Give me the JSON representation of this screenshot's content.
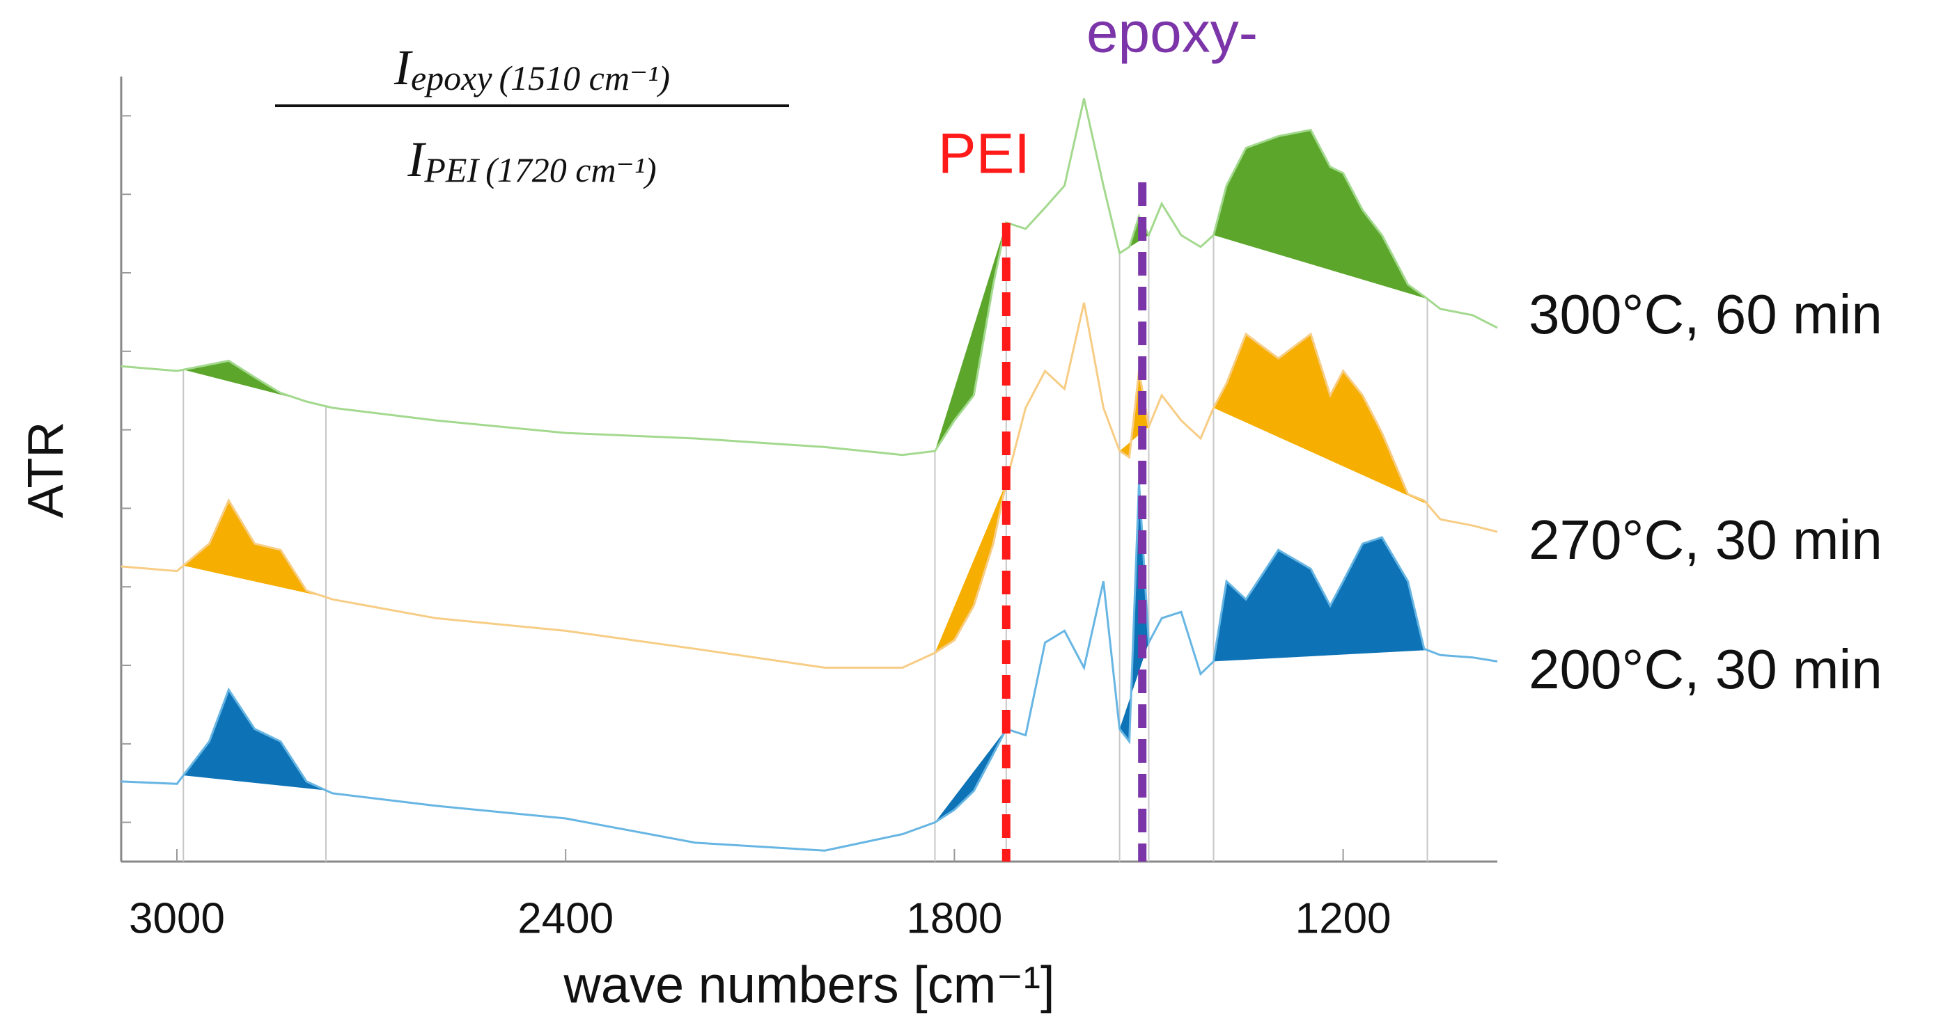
{
  "chart_data": {
    "type": "line",
    "xlabel": "wave numbers [cm⁻¹]",
    "ylabel": "ATR",
    "xlim": [
      3086,
      962
    ],
    "xticks": [
      3000,
      2400,
      1800,
      1200
    ],
    "ylim": [
      0,
      10
    ],
    "yticks": [
      0.5,
      1.5,
      2.5,
      3.5,
      4.5,
      5.5,
      6.5,
      7.5,
      8.5,
      9.5
    ],
    "formula": {
      "numerator": {
        "symbol": "I",
        "subscript": "epoxy",
        "argument": "(1510 cm⁻¹)"
      },
      "denominator": {
        "symbol": "I",
        "subscript": "PEI",
        "argument": "(1720 cm⁻¹)"
      }
    },
    "markers": [
      {
        "label": "PEI",
        "x": 1720,
        "color": "#ff1a1a"
      },
      {
        "label": "epoxy-",
        "x": 1510,
        "color": "#7b35a8"
      }
    ],
    "shaded_ranges": [
      [
        2990,
        2770
      ],
      [
        1830,
        1720
      ],
      [
        1545,
        1500
      ],
      [
        1400,
        1070
      ]
    ],
    "x": [
      3086,
      3000,
      2950,
      2920,
      2880,
      2840,
      2800,
      2760,
      2600,
      2400,
      2200,
      2000,
      1880,
      1830,
      1800,
      1770,
      1740,
      1720,
      1690,
      1660,
      1630,
      1600,
      1570,
      1545,
      1530,
      1515,
      1500,
      1480,
      1450,
      1420,
      1400,
      1380,
      1350,
      1300,
      1250,
      1220,
      1200,
      1170,
      1140,
      1100,
      1075,
      1050,
      1000,
      962
    ],
    "series": [
      {
        "name": "300°C, 60 min",
        "color": "#a3d98e",
        "fill_color": "#5ba62b",
        "values": [
          6.31,
          6.25,
          6.33,
          6.38,
          6.17,
          5.97,
          5.86,
          5.78,
          5.62,
          5.46,
          5.39,
          5.28,
          5.18,
          5.23,
          5.62,
          5.94,
          7.35,
          8.14,
          8.06,
          8.33,
          8.61,
          9.72,
          8.61,
          7.75,
          7.83,
          8.22,
          7.98,
          8.38,
          7.98,
          7.83,
          7.98,
          8.61,
          9.09,
          9.24,
          9.32,
          8.85,
          8.77,
          8.3,
          7.98,
          7.35,
          7.2,
          7.04,
          6.96,
          6.8
        ]
      },
      {
        "name": "270°C, 30 min",
        "color": "#f7cd85",
        "fill_color": "#f6ae00",
        "values": [
          3.76,
          3.7,
          4.05,
          4.6,
          4.05,
          3.97,
          3.45,
          3.34,
          3.1,
          2.94,
          2.71,
          2.47,
          2.47,
          2.66,
          2.82,
          3.26,
          4.05,
          4.83,
          5.78,
          6.25,
          6.02,
          7.12,
          5.78,
          5.23,
          5.15,
          6.25,
          5.54,
          5.94,
          5.62,
          5.39,
          5.78,
          6.09,
          6.72,
          6.41,
          6.72,
          5.94,
          6.25,
          5.94,
          5.46,
          4.68,
          4.6,
          4.36,
          4.28,
          4.2
        ]
      },
      {
        "name": "200°C, 30 min",
        "color": "#66b5e3",
        "fill_color": "#0d73b6",
        "values": [
          1.02,
          0.99,
          1.53,
          2.19,
          1.69,
          1.53,
          1.02,
          0.87,
          0.71,
          0.55,
          0.24,
          0.14,
          0.35,
          0.5,
          0.66,
          0.9,
          1.37,
          1.69,
          1.61,
          2.79,
          2.94,
          2.47,
          3.57,
          1.69,
          1.53,
          4.83,
          2.79,
          3.1,
          3.18,
          2.39,
          2.55,
          3.57,
          3.34,
          3.97,
          3.73,
          3.26,
          3.57,
          4.05,
          4.13,
          3.57,
          2.71,
          2.63,
          2.6,
          2.55
        ]
      }
    ]
  }
}
